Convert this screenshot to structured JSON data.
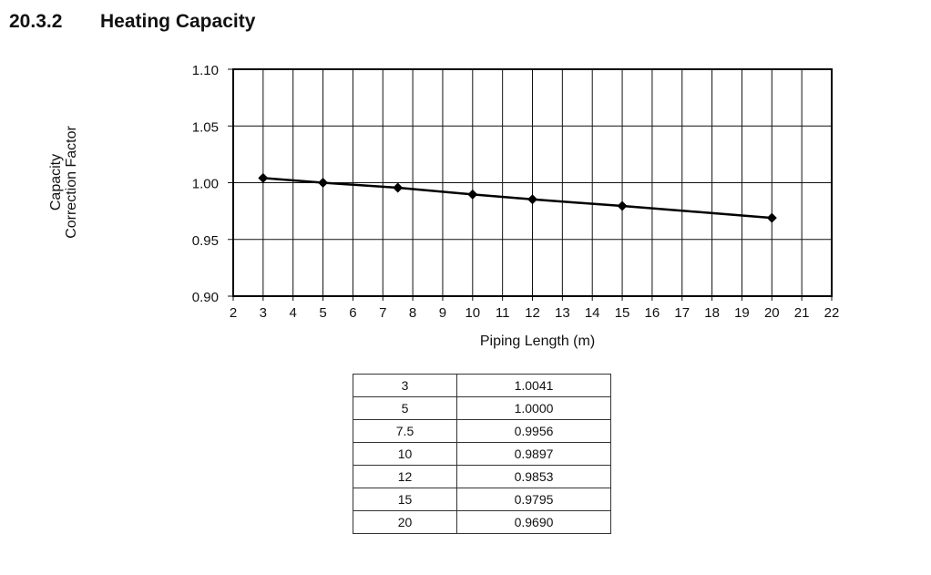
{
  "heading": {
    "number": "20.3.2",
    "title": "Heating Capacity"
  },
  "chart_data": {
    "type": "line",
    "xlabel": "Piping Length (m)",
    "ylabel_lines": [
      "Capacity",
      "Correction Factor"
    ],
    "xlim": [
      2,
      22
    ],
    "ylim": [
      0.9,
      1.1
    ],
    "x_ticks": [
      2,
      3,
      4,
      5,
      6,
      7,
      8,
      9,
      10,
      11,
      12,
      13,
      14,
      15,
      16,
      17,
      18,
      19,
      20,
      21,
      22
    ],
    "y_ticks": [
      "0.90",
      "0.95",
      "1.00",
      "1.05",
      "1.10"
    ],
    "grid": true,
    "marker": "diamond",
    "line_color": "#000000",
    "series": [
      {
        "x": [
          3,
          5,
          7.5,
          10,
          12,
          15,
          20
        ],
        "y": [
          1.0041,
          1.0,
          0.9956,
          0.9897,
          0.9853,
          0.9795,
          0.969
        ]
      }
    ]
  },
  "table": {
    "rows": [
      [
        "3",
        "1.0041"
      ],
      [
        "5",
        "1.0000"
      ],
      [
        "7.5",
        "0.9956"
      ],
      [
        "10",
        "0.9897"
      ],
      [
        "12",
        "0.9853"
      ],
      [
        "15",
        "0.9795"
      ],
      [
        "20",
        "0.9690"
      ]
    ]
  }
}
